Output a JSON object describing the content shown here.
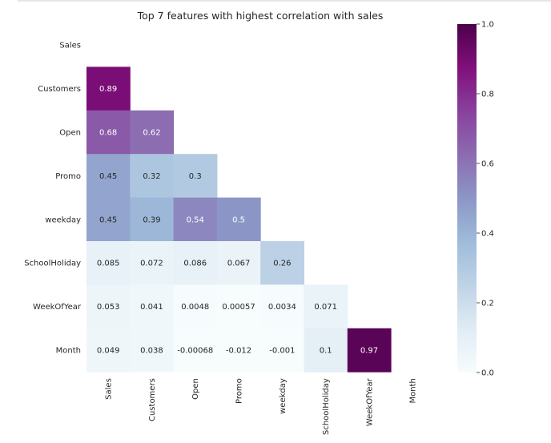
{
  "chart_data": {
    "type": "heatmap",
    "title": "Top 7 features with highest correlation with sales",
    "variables": [
      "Sales",
      "Customers",
      "Open",
      "Promo",
      "weekday",
      "SchoolHoliday",
      "WeekOfYear",
      "Month"
    ],
    "mask": "upper-triangle-including-diagonal",
    "matrix": [
      [
        null,
        null,
        null,
        null,
        null,
        null,
        null,
        null
      ],
      [
        0.89,
        null,
        null,
        null,
        null,
        null,
        null,
        null
      ],
      [
        0.68,
        0.62,
        null,
        null,
        null,
        null,
        null,
        null
      ],
      [
        0.45,
        0.32,
        0.3,
        null,
        null,
        null,
        null,
        null
      ],
      [
        0.45,
        0.39,
        0.54,
        0.5,
        null,
        null,
        null,
        null
      ],
      [
        0.085,
        0.072,
        0.086,
        0.067,
        0.26,
        null,
        null,
        null
      ],
      [
        0.053,
        0.041,
        0.0048,
        0.00057,
        0.0034,
        0.071,
        null,
        null
      ],
      [
        0.049,
        0.038,
        -0.00068,
        -0.012,
        -0.001,
        0.1,
        0.97,
        null
      ]
    ],
    "cell_labels": [
      [
        null,
        null,
        null,
        null,
        null,
        null,
        null,
        null
      ],
      [
        "0.89",
        null,
        null,
        null,
        null,
        null,
        null,
        null
      ],
      [
        "0.68",
        "0.62",
        null,
        null,
        null,
        null,
        null,
        null
      ],
      [
        "0.45",
        "0.32",
        "0.3",
        null,
        null,
        null,
        null,
        null
      ],
      [
        "0.45",
        "0.39",
        "0.54",
        "0.5",
        null,
        null,
        null,
        null
      ],
      [
        "0.085",
        "0.072",
        "0.086",
        "0.067",
        "0.26",
        null,
        null,
        null
      ],
      [
        "0.053",
        "0.041",
        "0.0048",
        "0.00057",
        "0.0034",
        "0.071",
        null,
        null
      ],
      [
        "0.049",
        "0.038",
        "-0.00068",
        "-0.012",
        "-0.001",
        "0.1",
        "0.97",
        null
      ]
    ],
    "colormap": "BuPu",
    "colormap_stops": [
      "#f7fcfd",
      "#e0ecf4",
      "#bfd3e6",
      "#9ebcda",
      "#8c96c6",
      "#8c6bb1",
      "#88419d",
      "#810f7c",
      "#4d004b"
    ],
    "vmin": 0.0,
    "vmax": 1.0,
    "colorbar_ticks": [
      "0.0",
      "0.2",
      "0.4",
      "0.6",
      "0.8",
      "1.0"
    ],
    "grid": false
  }
}
